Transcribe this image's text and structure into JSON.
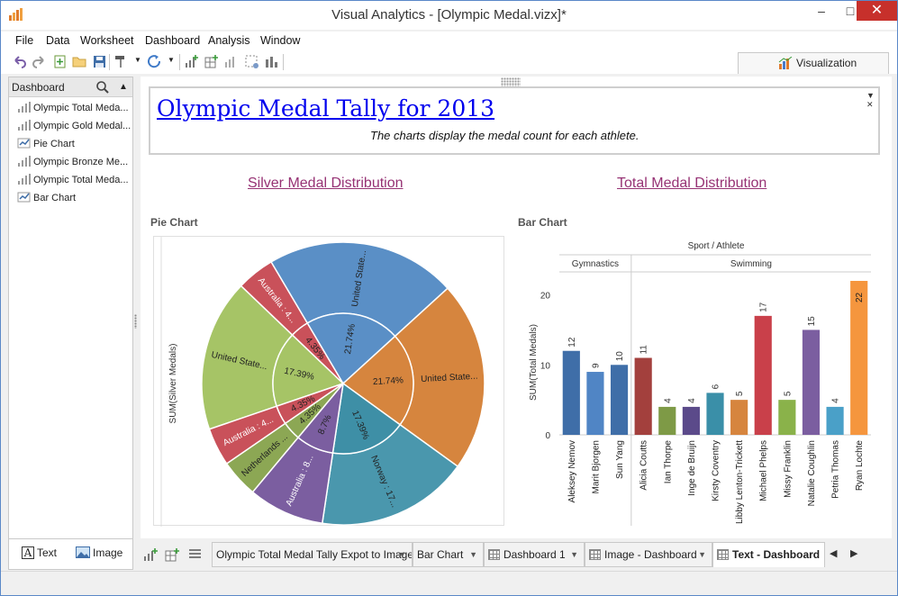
{
  "window": {
    "title": "Visual Analytics - [Olympic Medal.vizx]*",
    "minimize": "–",
    "maximize": "□",
    "close": "✕"
  },
  "menu": [
    "File",
    "Data",
    "Worksheet",
    "Dashboard",
    "Analysis",
    "Window"
  ],
  "toolbar": {
    "visualization_tab": "Visualization"
  },
  "left_panel": {
    "header": "Dashboard",
    "items": [
      {
        "label": "Olympic Total Meda...",
        "icon": "bar-chart-icon"
      },
      {
        "label": "Olympic Gold Medal...",
        "icon": "bar-chart-icon"
      },
      {
        "label": "Pie Chart",
        "icon": "pie-chart-icon"
      },
      {
        "label": "Olympic Bronze Me...",
        "icon": "bar-chart-icon"
      },
      {
        "label": "Olympic Total Meda...",
        "icon": "bar-chart-icon"
      },
      {
        "label": "Bar Chart",
        "icon": "pie-chart-icon"
      }
    ],
    "text_button": "Text",
    "image_button": "Image"
  },
  "dashboard": {
    "title": "Olympic Medal Tally for 2013",
    "subtitle": "The charts display the medal count for each athlete.",
    "left_section": "Silver Medal Distribution",
    "right_section": "Total Medal Distribution",
    "pie_caption": "Pie Chart",
    "bar_caption": "Bar Chart"
  },
  "chart_data": [
    {
      "type": "pie",
      "ylabel": "SUM(Silver Medals)",
      "inner_ring": [
        {
          "label": "17.39%",
          "value": 17.39,
          "color": "#a6c466"
        },
        {
          "label": "4.35%",
          "value": 4.35,
          "color": "#c9515a"
        },
        {
          "label": "21.74%",
          "value": 21.74,
          "color": "#5a8fc6"
        },
        {
          "label": "21.74%",
          "value": 21.74,
          "color": "#d6853e"
        },
        {
          "label": "17.39%",
          "value": 17.39,
          "color": "#3e8fa6"
        },
        {
          "label": "8.7%",
          "value": 8.7,
          "color": "#7b5ea0"
        },
        {
          "label": "4.35%",
          "value": 4.35,
          "color": "#8ca754"
        },
        {
          "label": "4.35%",
          "value": 4.35,
          "color": "#c9515a"
        }
      ],
      "outer_ring": [
        {
          "label": "United State...",
          "value": 17.39,
          "color": "#a6c466"
        },
        {
          "label": "Australia : 4...",
          "value": 4.35,
          "color": "#c9515a"
        },
        {
          "label": "United State...",
          "value": 21.74,
          "color": "#5a8fc6"
        },
        {
          "label": "United State...",
          "value": 21.74,
          "color": "#d6853e"
        },
        {
          "label": "Norway : 17...",
          "value": 17.39,
          "color": "#4a97ad"
        },
        {
          "label": "Australia : 8...",
          "value": 8.7,
          "color": "#7b5ea0"
        },
        {
          "label": "Netherlands ...",
          "value": 4.35,
          "color": "#8ca754"
        },
        {
          "label": "Australia : 4...",
          "value": 4.35,
          "color": "#c9515a"
        }
      ]
    },
    {
      "type": "bar",
      "header": "Sport / Athlete",
      "ylabel": "SUM(Total Medals)",
      "ylim": [
        0,
        22
      ],
      "yticks": [
        0,
        10,
        20
      ],
      "groups": [
        {
          "name": "Gymnastics",
          "count": 3
        },
        {
          "name": "Swimming",
          "count": 10
        }
      ],
      "categories": [
        "Aleksey Nemov",
        "Marit Bjorgen",
        "Sun Yang",
        "Alicia Coutts",
        "Ian Thorpe",
        "Inge de Bruijn",
        "Kirsty Coventry",
        "Libby Lenton-Trickett",
        "Michael Phelps",
        "Missy Franklin",
        "Natalie Coughlin",
        "Petria Thomas",
        "Ryan Lochte"
      ],
      "values": [
        12,
        9,
        10,
        11,
        4,
        4,
        6,
        5,
        17,
        5,
        15,
        4,
        22
      ],
      "colors": [
        "#3f6ea8",
        "#5085c5",
        "#3f6ea8",
        "#a3403d",
        "#7e9a46",
        "#5b4a8a",
        "#3a8fa8",
        "#d6853e",
        "#c9404a",
        "#8ab24a",
        "#7b5ea0",
        "#4aa0c8",
        "#f5963e"
      ]
    }
  ],
  "bottom_tabs": [
    {
      "label": "Olympic Total Medal Tally Expot to Image",
      "icon": ""
    },
    {
      "label": "Bar Chart",
      "icon": ""
    },
    {
      "label": "Dashboard 1",
      "icon": "grid-icon"
    },
    {
      "label": "Image - Dashboard",
      "icon": "grid-icon"
    },
    {
      "label": "Text - Dashboard",
      "icon": "grid-icon",
      "active": true
    }
  ]
}
